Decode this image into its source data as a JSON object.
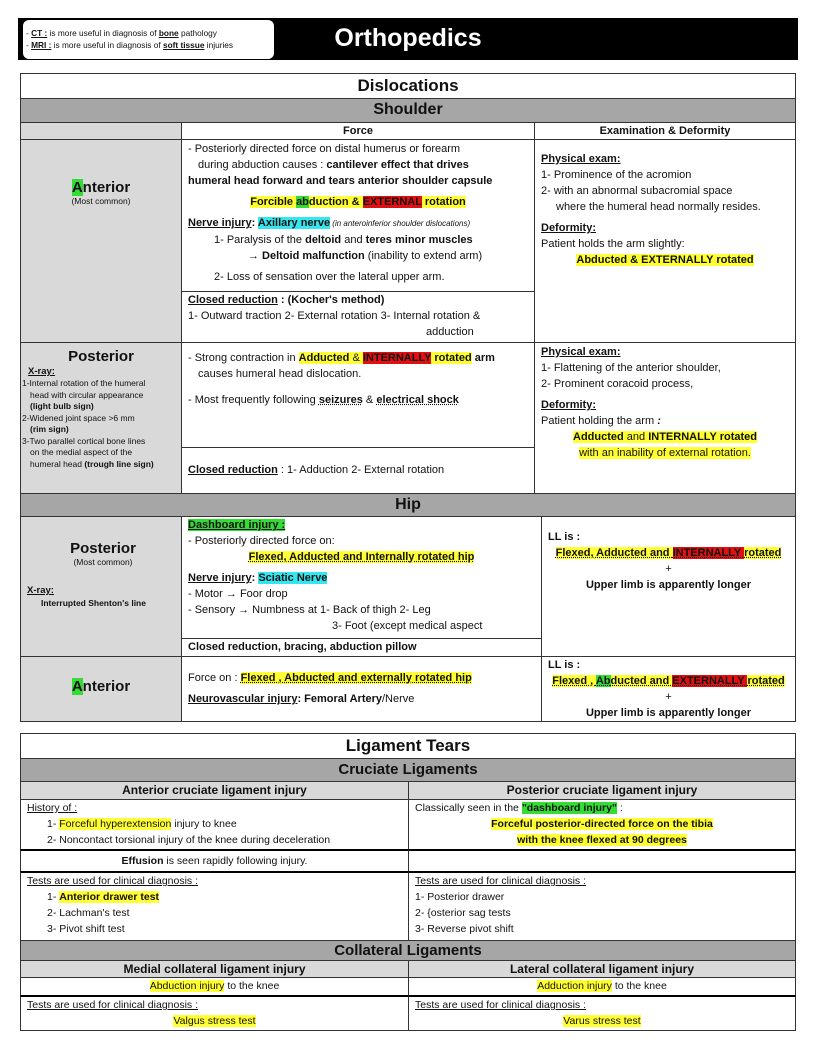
{
  "header": {
    "title": "Orthopedics",
    "note": [
      [
        {
          "t": "- "
        },
        {
          "t": "CT :",
          "s": "b u"
        },
        {
          "t": "  is more useful in diagnosis of "
        },
        {
          "t": "bone",
          "s": "b u"
        },
        {
          "t": " pathology"
        }
      ],
      [
        {
          "t": "- "
        },
        {
          "t": "MRI :",
          "s": "b u"
        },
        {
          "t": " is more useful in diagnosis of "
        },
        {
          "t": "soft tissue",
          "s": "b u"
        },
        {
          "t": " injuries"
        }
      ]
    ]
  },
  "dislocations": {
    "title": "Dislocations",
    "shoulder": {
      "title": "Shoulder",
      "col_force": "Force",
      "col_exam": "Examination & Deformity",
      "anterior": {
        "label": [
          {
            "t": "A",
            "s": "g"
          },
          {
            "t": "nterior"
          }
        ],
        "note": "(Most common)",
        "force": [
          [
            {
              "t": "- Posteriorly directed force on distal humerus or forearm"
            }
          ],
          [
            {
              "t": "during abduction causes : "
            },
            {
              "t": "cantilever effect that drives",
              "s": "b"
            }
          ],
          [
            {
              "t": "humeral head forward and tears anterior shoulder capsule",
              "s": "b"
            }
          ],
          [
            {
              "t": "Forcible ",
              "s": "b y"
            },
            {
              "t": "ab",
              "s": "b g"
            },
            {
              "t": "duction & ",
              "s": "b y"
            },
            {
              "t": "EXTERNAL",
              "s": "b r"
            },
            {
              "t": " rotation",
              "s": "b y"
            }
          ],
          [
            {
              "t": "Nerve injury",
              "s": "b u"
            },
            {
              "t": ": ",
              "s": "b"
            },
            {
              "t": "Axillary nerve",
              "s": "b cy"
            },
            {
              "t": " (in anteroinferior shoulder dislocations)",
              "s": "i sm"
            }
          ],
          [
            {
              "t": "1- Paralysis of the "
            },
            {
              "t": "deltoid",
              "s": "b"
            },
            {
              "t": " and "
            },
            {
              "t": "teres minor muscles",
              "s": "b"
            }
          ],
          [
            {
              "t": "→ Deltoid malfunction",
              "s": "b"
            },
            {
              "t": " (inability to extend arm)"
            }
          ],
          [
            {
              "t": "2- Loss of sensation over the lateral upper arm."
            }
          ]
        ],
        "reduction": [
          [
            {
              "t": "Closed reduction",
              "s": "b u"
            },
            {
              "t": " : (Kocher's method)",
              "s": "b"
            }
          ],
          [
            {
              "t": "1- Outward traction 2- External rotation  3- Internal rotation &"
            }
          ],
          [
            {
              "t": "adduction"
            }
          ]
        ],
        "exam": [
          [
            {
              "t": "Physical exam:",
              "s": "b u"
            }
          ],
          [
            {
              "t": "1- Prominence of the acromion"
            }
          ],
          [
            {
              "t": "2- with an abnormal subacromial space"
            }
          ],
          [
            {
              "t": "where the humeral head normally resides."
            }
          ],
          [
            {
              "t": "Deformity:",
              "s": "b u"
            }
          ],
          [
            {
              "t": "Patient holds the arm slightly:"
            }
          ],
          [
            {
              "t": "Abducted & EXTERNALLY rotated",
              "s": "b y"
            }
          ]
        ]
      },
      "posterior": {
        "label": [
          {
            "t": "Posterior"
          }
        ],
        "xray_title": "X-ray:",
        "xray": [
          [
            {
              "t": "1-Internal rotation of the humeral"
            }
          ],
          [
            {
              "t": "  head with circular appearance"
            }
          ],
          [
            {
              "t": "  (light bulb sign)",
              "s": "b"
            }
          ],
          [
            {
              "t": "2-Widened joint space >6 mm"
            }
          ],
          [
            {
              "t": "  (rim sign)",
              "s": "b"
            }
          ],
          [
            {
              "t": "3-Two parallel cortical bone lines"
            }
          ],
          [
            {
              "t": "  on the medial aspect of the"
            }
          ],
          [
            {
              "t": "  humeral head "
            },
            {
              "t": "(trough line sign)",
              "s": "b"
            }
          ]
        ],
        "force": [
          [
            {
              "t": "- Strong contraction in "
            },
            {
              "t": "Adducted",
              "s": "b y"
            },
            {
              "t": " & ",
              "s": "y"
            },
            {
              "t": "INTERNALLY",
              "s": "b r"
            },
            {
              "t": " rotated",
              "s": "b y"
            },
            {
              "t": " arm",
              "s": "b"
            }
          ],
          [
            {
              "t": "causes humeral head dislocation."
            }
          ],
          [
            {
              "t": "- Most frequently following "
            },
            {
              "t": "seizures",
              "s": "b d"
            },
            {
              "t": " & "
            },
            {
              "t": "electrical shock",
              "s": "b d"
            }
          ]
        ],
        "reduction": [
          [
            {
              "t": "Closed reduction",
              "s": "b u"
            },
            {
              "t": " :  1- Adduction   2- External rotation"
            }
          ]
        ],
        "exam": [
          [
            {
              "t": "Physical exam:",
              "s": "b u"
            }
          ],
          [
            {
              "t": "1- Flattening of the anterior shoulder,"
            }
          ],
          [
            {
              "t": "2- Prominent coracoid process,"
            }
          ],
          [
            {
              "t": "Deformity:",
              "s": "b u"
            }
          ],
          [
            {
              "t": "Patient holding the arm "
            },
            {
              "t": ":",
              "s": "b i"
            }
          ],
          [
            {
              "t": "Adducted",
              "s": "b y"
            },
            {
              "t": " and ",
              "s": "y"
            },
            {
              "t": "INTERNALLY rotated",
              "s": "b y"
            }
          ],
          [
            {
              "t": "with an inability of external rotation.",
              "s": "y"
            }
          ]
        ]
      }
    },
    "hip": {
      "title": "Hip",
      "posterior": {
        "label": [
          {
            "t": "Posterior"
          }
        ],
        "note": "(Most common)",
        "xray_title": "X-ray:",
        "xray": "Interrupted Shenton's line",
        "force": [
          [
            {
              "t": "Dashboard injury :",
              "s": "b u g"
            }
          ],
          [
            {
              "t": "- Posteriorly directed force on:"
            }
          ],
          [
            {
              "t": "Flexed, Adducted and Internally rotated hip",
              "s": "b d y"
            }
          ],
          [
            {
              "t": "Nerve injury",
              "s": "b u"
            },
            {
              "t": ": ",
              "s": "b"
            },
            {
              "t": "Sciatic Nerve",
              "s": "b cy"
            }
          ],
          [
            {
              "t": "- Motor → Foor drop"
            }
          ],
          [
            {
              "t": "- Sensory → Numbness at 1- Back of thigh    2- Leg"
            }
          ],
          [
            {
              "t": "3- Foot (except medical aspect"
            }
          ]
        ],
        "reduction": [
          [
            {
              "t": "Closed reduction, bracing, abduction pillow",
              "s": "b"
            }
          ]
        ],
        "exam": [
          [
            {
              "t": "LL is :",
              "s": "b"
            }
          ],
          [
            {
              "t": "Flexed, Adducted and ",
              "s": "b d y"
            },
            {
              "t": "INTERNALLY ",
              "s": "b d r"
            },
            {
              "t": "rotated",
              "s": "b d y"
            }
          ],
          [
            {
              "t": "+"
            }
          ],
          [
            {
              "t": "Upper limb is apparently longer",
              "s": "b"
            }
          ]
        ]
      },
      "anterior": {
        "label": [
          {
            "t": "A",
            "s": "g"
          },
          {
            "t": "nterior"
          }
        ],
        "force": [
          [
            {
              "t": "Force on : "
            },
            {
              "t": "Flexed , Abducted and externally rotated hip",
              "s": "b d y"
            }
          ],
          [
            {
              "t": "Neurovascular injury",
              "s": "b u"
            },
            {
              "t": ": Femoral Artery",
              "s": "b"
            },
            {
              "t": "/Nerve"
            }
          ]
        ],
        "exam": [
          [
            {
              "t": "LL is :",
              "s": "b"
            }
          ],
          [
            {
              "t": "Flexed , ",
              "s": "b d y"
            },
            {
              "t": "Ab",
              "s": "b d g"
            },
            {
              "t": "ducted and ",
              "s": "b d y"
            },
            {
              "t": "EXTERNALLY ",
              "s": "b d r"
            },
            {
              "t": "rotated",
              "s": "b d y"
            }
          ],
          [
            {
              "t": "+"
            }
          ],
          [
            {
              "t": "Upper limb is apparently longer",
              "s": "b"
            }
          ]
        ]
      }
    }
  },
  "ligaments": {
    "title": "Ligament Tears",
    "cruciate": {
      "title": "Cruciate Ligaments",
      "acl_title": "Anterior cruciate ligament injury",
      "pcl_title": "Posterior cruciate ligament injury",
      "acl_history": [
        [
          {
            "t": "History of :",
            "s": "u"
          }
        ],
        [
          {
            "t": "1-   "
          },
          {
            "t": "Forceful hyperextension",
            "s": "y"
          },
          {
            "t": " injury to knee"
          }
        ],
        [
          {
            "t": "2-   Noncontact torsional injury of the knee during deceleration"
          }
        ]
      ],
      "pcl_history": [
        [
          {
            "t": "Classically seen in the "
          },
          {
            "t": "\"dashboard injury\"",
            "s": "b g"
          },
          {
            "t": " :"
          }
        ],
        [
          {
            "t": "Forceful posterior-directed force on the tibia",
            "s": "b y"
          }
        ],
        [
          {
            "t": "with the knee flexed at 90 degrees",
            "s": "b y"
          }
        ]
      ],
      "acl_effusion": [
        {
          "t": "Effusion",
          "s": "b"
        },
        {
          "t": " is seen rapidly following injury."
        }
      ],
      "acl_tests": [
        [
          {
            "t": "Tests are used for clinical diagnosis :",
            "s": "u"
          }
        ],
        [
          {
            "t": "1-   "
          },
          {
            "t": "Anterior drawer test",
            "s": "b y"
          }
        ],
        [
          {
            "t": "2-   Lachman's test"
          }
        ],
        [
          {
            "t": "3-   Pivot shift test"
          }
        ]
      ],
      "pcl_tests": [
        [
          {
            "t": "Tests are used for clinical diagnosis :",
            "s": "u"
          }
        ],
        [
          {
            "t": "1-   Posterior drawer"
          }
        ],
        [
          {
            "t": "2-   {osterior sag tests"
          }
        ],
        [
          {
            "t": "3-   Reverse pivot shift"
          }
        ]
      ]
    },
    "collateral": {
      "title": "Collateral Ligaments",
      "mcl_title": "Medial collateral ligament injury",
      "lcl_title": "Lateral collateral ligament injury",
      "mcl_mech": [
        {
          "t": "Abduction injury",
          "s": "y"
        },
        {
          "t": " to the knee"
        }
      ],
      "lcl_mech": [
        {
          "t": "Adduction injury",
          "s": "y"
        },
        {
          "t": " to the knee"
        }
      ],
      "mcl_tests": [
        [
          {
            "t": "Tests are used for clinical diagnosis :",
            "s": "u"
          }
        ],
        [
          {
            "t": "Valgus stress test",
            "s": "y"
          }
        ]
      ],
      "lcl_tests": [
        [
          {
            "t": "Tests are used for clinical diagnosis :",
            "s": "u"
          }
        ],
        [
          {
            "t": "Varus stress test",
            "s": "y"
          }
        ]
      ]
    }
  },
  "colors": {
    "yellow": "#ffff33",
    "green": "#33dd33",
    "red": "#e01010",
    "cyan": "#33e6f0",
    "section_gray": "#a6a6a6",
    "label_gray": "#d9d9d9"
  }
}
